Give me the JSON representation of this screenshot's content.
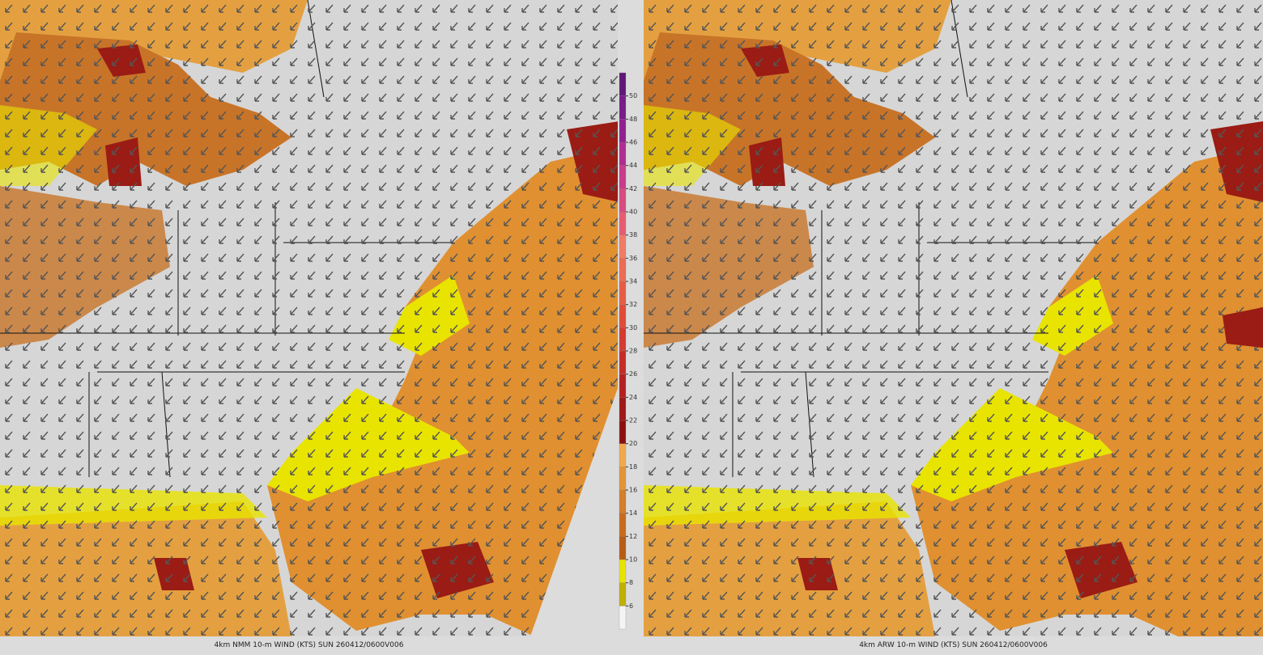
{
  "panels": [
    {
      "caption": "4km NMM 10-m WIND (KTS) SUN 260412/0600V006"
    },
    {
      "caption": "4km ARW 10-m WIND (KTS) SUN 260412/0600V006"
    }
  ],
  "colorbar": {
    "labels": [
      6,
      8,
      10,
      12,
      14,
      16,
      18,
      20,
      22,
      24,
      26,
      28,
      30,
      32,
      34,
      36,
      38,
      40,
      42,
      44,
      46,
      48,
      50
    ],
    "colors": [
      "#f4f4f4",
      "#c0b000",
      "#e8e400",
      "#b85c14",
      "#c86c1c",
      "#d47e28",
      "#e49438",
      "#f0aa4c",
      "#8c1010",
      "#a01818",
      "#b42020",
      "#c42c28",
      "#d43c30",
      "#e04c38",
      "#e85c44",
      "#ec6c54",
      "#f07c64",
      "#e85c70",
      "#d84c80",
      "#c83c8c",
      "#b02c90",
      "#902090",
      "#781c88",
      "#601878"
    ]
  }
}
